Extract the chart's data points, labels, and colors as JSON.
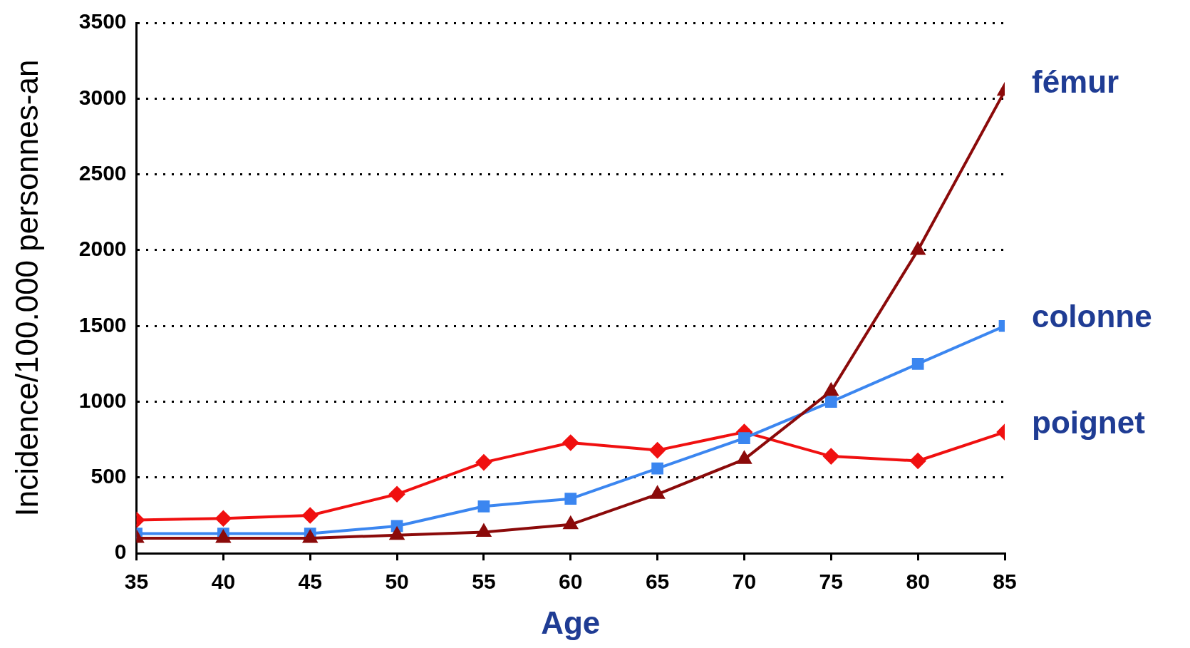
{
  "chart_data": {
    "type": "line",
    "xlabel": "Age",
    "ylabel": "Incidence/100.000 personnes-an",
    "x": [
      35,
      40,
      45,
      50,
      55,
      60,
      65,
      70,
      75,
      80,
      85
    ],
    "xlim": [
      35,
      85
    ],
    "xticks": [
      35,
      40,
      45,
      50,
      55,
      60,
      65,
      70,
      75,
      80,
      85
    ],
    "ylim": [
      0,
      3500
    ],
    "yticks": [
      0,
      500,
      1000,
      1500,
      2000,
      2500,
      3000,
      3500
    ],
    "grid": "y",
    "legend": false,
    "series": [
      {
        "name": "fémur",
        "color": "#8b0a0a",
        "marker": "triangle",
        "values": [
          100,
          100,
          100,
          120,
          140,
          190,
          390,
          620,
          1070,
          2000,
          3050
        ]
      },
      {
        "name": "colonne",
        "color": "#3b86f0",
        "marker": "square",
        "values": [
          130,
          130,
          130,
          180,
          310,
          360,
          560,
          760,
          1000,
          1250,
          1500
        ]
      },
      {
        "name": "poignet",
        "color": "#f01010",
        "marker": "diamond",
        "values": [
          220,
          230,
          250,
          390,
          600,
          730,
          680,
          800,
          640,
          610,
          800
        ]
      }
    ]
  }
}
